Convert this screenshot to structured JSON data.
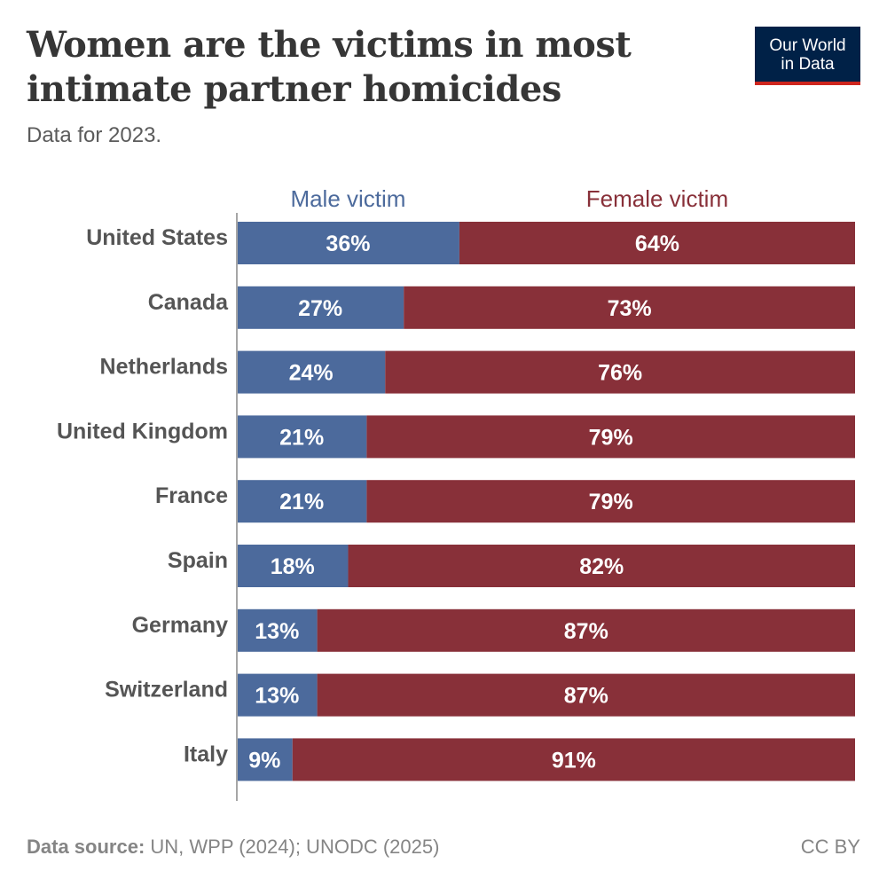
{
  "title": "Women are the victims in most intimate partner homicides",
  "subtitle": "Data for 2023.",
  "logo": {
    "line1": "Our World",
    "line2": "in Data"
  },
  "footer": {
    "source_label": "Data source:",
    "source_text": "UN, WPP (2024); UNODC (2025)",
    "license": "CC BY"
  },
  "colors": {
    "male": "#4c6a9c",
    "female": "#883039",
    "logo_bg": "#002147",
    "logo_accent": "#ce261e"
  },
  "chart_data": {
    "type": "bar",
    "orientation": "horizontal",
    "stacked": true,
    "value_unit": "%",
    "categories": [
      "United States",
      "Canada",
      "Netherlands",
      "United Kingdom",
      "France",
      "Spain",
      "Germany",
      "Switzerland",
      "Italy"
    ],
    "series": [
      {
        "name": "Male victim",
        "values": [
          36,
          27,
          24,
          21,
          21,
          18,
          13,
          13,
          9
        ]
      },
      {
        "name": "Female victim",
        "values": [
          64,
          73,
          76,
          79,
          79,
          82,
          87,
          87,
          91
        ]
      }
    ],
    "xlim": [
      0,
      100
    ],
    "legend_position": "top",
    "grid": false,
    "data_labels": true
  }
}
